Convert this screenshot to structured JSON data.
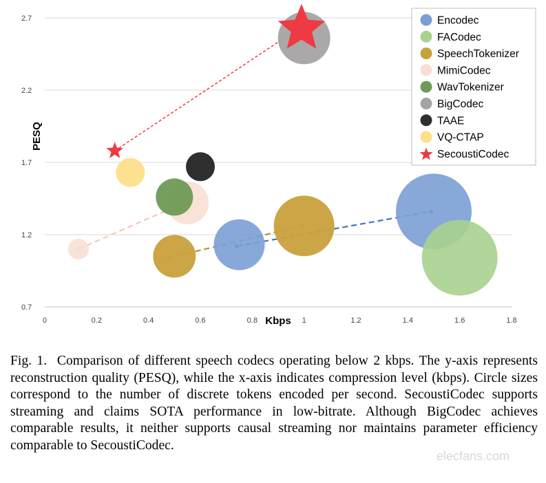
{
  "chart_data": {
    "type": "bubble",
    "xlabel": "Kbps",
    "ylabel": "PESQ",
    "xlim": [
      0,
      1.8
    ],
    "ylim": [
      0.7,
      2.7
    ],
    "xticks": [
      0,
      0.2,
      0.4,
      0.6,
      0.8,
      1,
      1.2,
      1.4,
      1.6,
      1.8
    ],
    "yticks": [
      0.7,
      1.2,
      1.7,
      2.2,
      2.7
    ],
    "grid": "horizontal",
    "legend_position": "top-right",
    "series": [
      {
        "name": "Encodec",
        "color": "#7b9ed6",
        "points": [
          {
            "x": 0.75,
            "y": 1.13,
            "size": 37
          },
          {
            "x": 1.5,
            "y": 1.36,
            "size": 55
          }
        ]
      },
      {
        "name": "FACodec",
        "color": "#a9d18e",
        "points": [
          {
            "x": 1.6,
            "y": 1.04,
            "size": 55
          }
        ]
      },
      {
        "name": "SpeechTokenizer",
        "color": "#c9a13c",
        "points": [
          {
            "x": 0.5,
            "y": 1.05,
            "size": 31
          },
          {
            "x": 1.0,
            "y": 1.26,
            "size": 44
          }
        ]
      },
      {
        "name": "MimiCodec",
        "color": "#f8ddd0",
        "points": [
          {
            "x": 0.13,
            "y": 1.1,
            "size": 15
          },
          {
            "x": 0.55,
            "y": 1.42,
            "size": 31
          }
        ]
      },
      {
        "name": "WavTokenizer",
        "color": "#6e9a56",
        "points": [
          {
            "x": 0.5,
            "y": 1.46,
            "size": 27
          }
        ]
      },
      {
        "name": "BigCodec",
        "color": "#a5a3a3",
        "points": [
          {
            "x": 1.0,
            "y": 2.56,
            "size": 38
          }
        ]
      },
      {
        "name": "TAAE",
        "color": "#2f2f2f",
        "points": [
          {
            "x": 0.6,
            "y": 1.67,
            "size": 21
          }
        ]
      },
      {
        "name": "VQ-CTAP",
        "color": "#fddf8a",
        "points": [
          {
            "x": 0.33,
            "y": 1.63,
            "size": 21
          }
        ]
      },
      {
        "name": "SecoustiCodec",
        "color": "#ee3a43",
        "marker": "star",
        "points": [
          {
            "x": 0.27,
            "y": 1.78
          },
          {
            "x": 0.99,
            "y": 2.64
          }
        ]
      }
    ],
    "trend_lines": [
      {
        "series": "Encodec",
        "color": "#4472c4",
        "points": [
          {
            "x": 0.74,
            "y": 1.12
          },
          {
            "x": 1.49,
            "y": 1.36
          }
        ]
      },
      {
        "series": "SpeechTokenizer",
        "color": "#b8902e",
        "points": [
          {
            "x": 0.48,
            "y": 1.04
          },
          {
            "x": 0.99,
            "y": 1.26
          }
        ]
      },
      {
        "series": "MimiCodec",
        "color": "#f3c9b6",
        "points": [
          {
            "x": 0.13,
            "y": 1.1
          },
          {
            "x": 0.55,
            "y": 1.43
          }
        ]
      },
      {
        "series": "SecoustiCodec",
        "color": "#ee3a43",
        "points": [
          {
            "x": 0.27,
            "y": 1.78
          },
          {
            "x": 0.99,
            "y": 2.64
          }
        ]
      }
    ]
  },
  "caption": {
    "label": "Fig. 1.",
    "text": "Comparison of different speech codecs operating below 2 kbps. The y-axis represents reconstruction quality (PESQ), while the x-axis indicates compression level (kbps). Circle sizes correspond to the number of discrete tokens encoded per second. SecoustiCodec supports streaming and claims SOTA performance in low-bitrate. Although BigCodec achieves comparable results, it neither supports causal streaming nor maintains parameter efficiency comparable to SecoustiCodec."
  },
  "watermark": "elecfans.com"
}
